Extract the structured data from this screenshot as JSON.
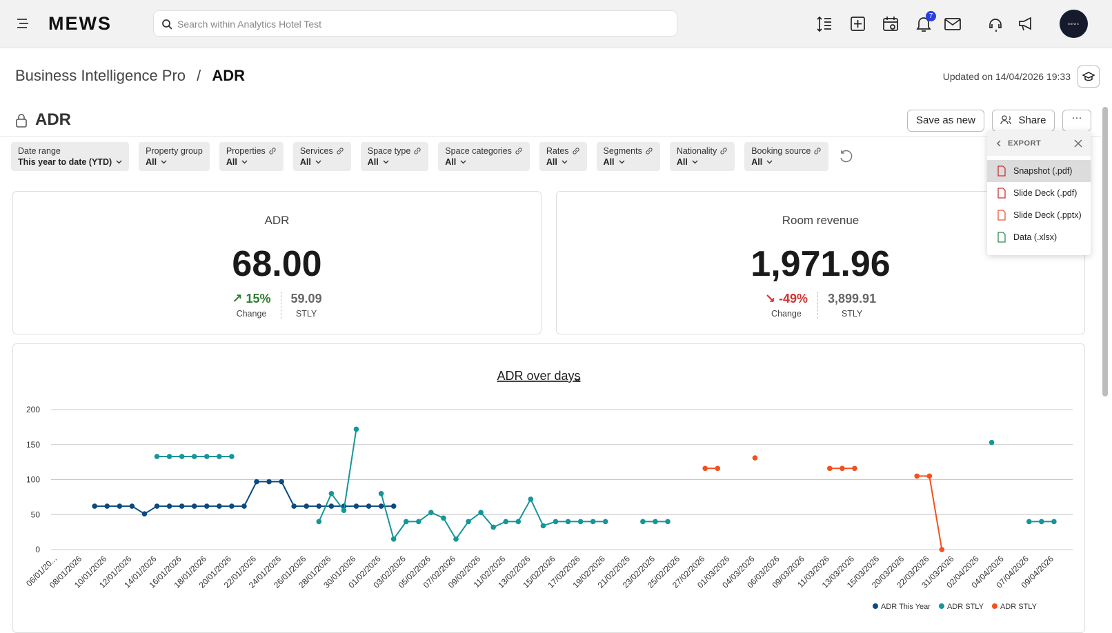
{
  "header": {
    "logo": "MEWS",
    "search_placeholder": "Search within Analytics Hotel Test",
    "notification_count": 7,
    "avatar": "MEWS"
  },
  "breadcrumb": {
    "parent": "Business Intelligence Pro",
    "separator": "/",
    "current": "ADR"
  },
  "updated": "Updated on 14/04/2026 19:33",
  "report": {
    "title": "ADR",
    "save_button": "Save as new",
    "share_button": "Share"
  },
  "filters": [
    {
      "label": "Date range",
      "value": "This year to date (YTD)"
    },
    {
      "label": "Property group",
      "value": "All"
    },
    {
      "label": "Properties",
      "value": "All"
    },
    {
      "label": "Services",
      "value": "All"
    },
    {
      "label": "Space type",
      "value": "All"
    },
    {
      "label": "Space categories",
      "value": "All"
    },
    {
      "label": "Rates",
      "value": "All"
    },
    {
      "label": "Segments",
      "value": "All"
    },
    {
      "label": "Nationality",
      "value": "All"
    },
    {
      "label": "Booking source",
      "value": "All"
    }
  ],
  "export_menu": {
    "title": "EXPORT",
    "items": [
      "Snapshot (.pdf)",
      "Slide Deck (.pdf)",
      "Slide Deck (.pptx)",
      "Data (.xlsx)"
    ]
  },
  "kpis": [
    {
      "title": "ADR",
      "value": "68.00",
      "change": "15%",
      "change_label": "Change",
      "stly": "59.09",
      "stly_label": "STLY"
    },
    {
      "title": "Room revenue",
      "value": "1,971.96",
      "change": "-49%",
      "change_label": "Change",
      "stly": "3,899.91",
      "stly_label": "STLY"
    }
  ],
  "chart_data": {
    "type": "line",
    "title": "ADR over days",
    "categories": [
      "06/01/20...",
      null,
      "08/01/2026",
      null,
      "10/01/2026",
      null,
      "12/01/2026",
      null,
      "14/01/2026",
      null,
      "16/01/2026",
      null,
      "18/01/2026",
      null,
      "20/01/2026",
      null,
      "22/01/2026",
      null,
      "24/01/2026",
      null,
      "26/01/2026",
      null,
      "28/01/2026",
      null,
      "30/01/2026",
      null,
      "01/02/2026",
      null,
      "03/02/2026",
      null,
      "05/02/2026",
      null,
      "07/02/2026",
      null,
      "09/02/2026",
      null,
      "11/02/2026",
      null,
      "13/02/2026",
      null,
      "15/02/2026",
      null,
      "17/02/2026",
      null,
      "19/02/2026",
      null,
      "21/02/2026",
      null,
      "23/02/2026",
      null,
      "25/02/2026",
      null,
      "27/02/2026",
      null,
      "01/03/2026",
      null,
      "04/03/2026",
      null,
      "06/03/2026",
      null,
      "09/03/2026",
      null,
      "11/03/2026",
      null,
      "13/03/2026",
      null,
      "15/03/2026",
      null,
      "20/03/2026",
      null,
      "22/03/2026",
      null,
      "31/03/2026",
      null,
      "02/04/2026",
      null,
      "04/04/2026",
      null,
      "07/04/2026",
      null,
      "09/04/2026",
      null
    ],
    "series": [
      {
        "name": "ADR This Year",
        "color": "#0b4a82",
        "values": [
          null,
          null,
          null,
          62,
          62,
          62,
          62,
          51,
          62,
          62,
          62,
          62,
          62,
          62,
          62,
          62,
          97,
          97,
          97,
          62,
          62,
          62,
          62,
          62,
          62,
          62,
          62,
          62,
          null,
          null,
          null,
          null,
          null,
          null,
          null,
          null,
          null,
          null,
          null,
          null,
          null,
          null,
          null,
          null,
          null,
          null,
          null,
          null,
          null,
          null,
          null,
          null,
          null,
          null,
          null,
          null,
          null,
          null,
          null,
          null,
          null,
          null,
          null,
          null,
          null,
          null,
          null,
          null,
          null,
          null,
          null,
          null,
          null,
          null,
          null,
          null,
          null,
          null,
          null,
          null,
          null,
          null
        ]
      },
      {
        "name": "ADR STLY",
        "color": "#16959a",
        "values": [
          null,
          null,
          null,
          null,
          null,
          null,
          null,
          null,
          133,
          133,
          133,
          133,
          133,
          133,
          133,
          null,
          null,
          null,
          null,
          null,
          null,
          40,
          80,
          56,
          172,
          null,
          80,
          15,
          40,
          40,
          53,
          45,
          15,
          40,
          53,
          32,
          40,
          40,
          72,
          34,
          40,
          40,
          40,
          40,
          40,
          null,
          null,
          40,
          40,
          40,
          null,
          null,
          null,
          null,
          null,
          null,
          null,
          null,
          null,
          null,
          null,
          null,
          null,
          null,
          null,
          null,
          null,
          null,
          null,
          null,
          null,
          null,
          null,
          null,
          null,
          153,
          null,
          null,
          40,
          40,
          40,
          null
        ]
      },
      {
        "name": "ADR STLY",
        "color": "#f4511e",
        "values": [
          null,
          null,
          null,
          null,
          null,
          null,
          null,
          null,
          null,
          null,
          null,
          null,
          null,
          null,
          null,
          null,
          null,
          null,
          null,
          null,
          null,
          null,
          null,
          null,
          null,
          null,
          null,
          null,
          null,
          null,
          null,
          null,
          null,
          null,
          null,
          null,
          null,
          null,
          null,
          null,
          null,
          null,
          null,
          null,
          null,
          null,
          null,
          null,
          null,
          null,
          null,
          null,
          116,
          116,
          null,
          null,
          131,
          null,
          null,
          null,
          null,
          null,
          116,
          116,
          116,
          null,
          null,
          null,
          null,
          105,
          105,
          0,
          null,
          null,
          null,
          null,
          null,
          null,
          null,
          null,
          null,
          null
        ]
      }
    ],
    "ylim": [
      0,
      200
    ],
    "yticks": [
      0,
      50,
      100,
      150,
      200
    ],
    "grid": true
  }
}
